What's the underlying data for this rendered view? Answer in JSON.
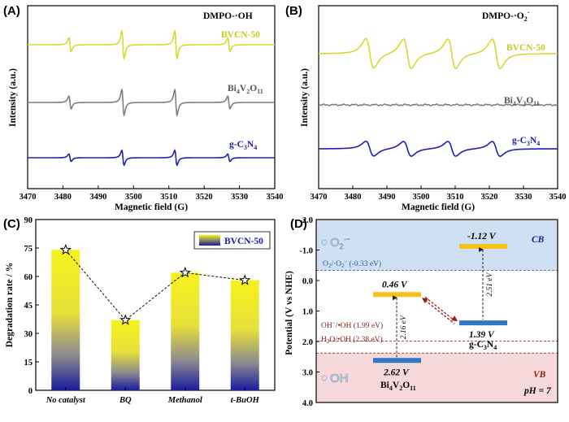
{
  "chart_data": [
    {
      "panel": "(A)",
      "type": "line",
      "title": "DMPO-·OH",
      "xlabel": "Magnetic field (G)",
      "ylabel": "Intensity (a.u.)",
      "xlim": [
        3470,
        3540
      ],
      "x_ticks": [
        3470,
        3480,
        3490,
        3500,
        3510,
        3520,
        3530,
        3540
      ],
      "series": [
        {
          "name": "BVCN-50",
          "color": "#D8D832",
          "peaks_G": [
            3482,
            3497,
            3512,
            3527
          ],
          "relative_amplitude": [
            1,
            2,
            2,
            1
          ]
        },
        {
          "name": "Bi4V2O11",
          "color": "#7F7F7F",
          "peaks_G": [
            3482,
            3497,
            3512,
            3527
          ],
          "relative_amplitude": [
            1,
            2,
            2,
            1
          ]
        },
        {
          "name": "g-C3N4",
          "color": "#2020B0",
          "peaks_G": [
            3482,
            3497,
            3512,
            3527
          ],
          "relative_amplitude": [
            1,
            2,
            2,
            1
          ]
        }
      ]
    },
    {
      "panel": "(B)",
      "type": "line",
      "title": "DMPO-·O2−",
      "xlabel": "Magnetic field (G)",
      "ylabel": "Intensity (a.u.)",
      "xlim": [
        3470,
        3540
      ],
      "x_ticks": [
        3470,
        3480,
        3490,
        3500,
        3510,
        3520,
        3530,
        3540
      ],
      "series": [
        {
          "name": "BVCN-50",
          "color": "#D8D832",
          "peaks_G": [
            3485,
            3496,
            3509,
            3522
          ]
        },
        {
          "name": "Bi4V2O11",
          "color": "#7F7F7F",
          "peaks_G": []
        },
        {
          "name": "g-C3N4",
          "color": "#2020B0",
          "peaks_G": [
            3485,
            3496,
            3509,
            3522
          ]
        }
      ]
    },
    {
      "panel": "(C)",
      "type": "bar",
      "categories": [
        "No catalyst",
        "BQ",
        "Methanol",
        "t-BuOH"
      ],
      "values": [
        74,
        37,
        62,
        58
      ],
      "ylabel": "Degradation rate / %",
      "ylim": [
        0,
        90
      ],
      "y_ticks": [
        0,
        15,
        30,
        45,
        60,
        75,
        90
      ],
      "legend": "BVCN-50",
      "legend_position": "top-right",
      "bar_gradient": [
        "#F5F01E",
        "#1E20A0"
      ]
    },
    {
      "panel": "(D)",
      "type": "diagram",
      "ylabel": "Potential (V vs NHE)",
      "ylim": [
        -2.0,
        4.0
      ],
      "y_ticks": [
        "-2.0",
        "-1.0",
        "0.0",
        "1.0",
        "2.0",
        "3.0",
        "4.0"
      ],
      "levels": [
        {
          "material": "Bi4V2O11",
          "CB": 0.46,
          "VB": 2.62,
          "gap_label": "2.16 eV",
          "CB_label": "0.46 V",
          "VB_label": "2.62 V"
        },
        {
          "material": "g-C3N4",
          "CB": -1.12,
          "VB": 1.39,
          "gap_label": "2.51 eV",
          "CB_label": "-1.12 V",
          "VB_label": "1.39 V"
        }
      ],
      "redox_lines": [
        {
          "label": "O2/·O2− (-0.33 eV)",
          "value": -0.33
        },
        {
          "label": "OH−/•OH (1.99 eV)",
          "value": 1.99
        },
        {
          "label": "H2O/•OH (2.38 eV)",
          "value": 2.38
        }
      ],
      "region_labels": {
        "cb": "CB",
        "vb": "VB",
        "ph": "pH = 7"
      }
    }
  ],
  "text": {
    "a_label": "(A)",
    "b_label": "(B)",
    "c_label": "(C)",
    "d_label": "(D)",
    "a_title": "DMPO-·OH",
    "b_title": "DMPO-·O",
    "bvcn": "BVCN-50",
    "bi": "Bi",
    "bi_4": "4",
    "v": "V",
    "v_2": "2",
    "o": "O",
    "o_11": "11",
    "gc": "g-C",
    "gc_3": "3",
    "n": "N",
    "n_4": "4",
    "intensity": "Intensity (a.u.)",
    "mag": "Magnetic field (G)",
    "deg": "Degradation rate / %",
    "potential": "Potential (V vs NHE)",
    "d_cb": "CB",
    "d_vb": "VB",
    "d_ph": "pH = 7",
    "d_o2": "O",
    "d_oh": "OH",
    "d_o2line": "O",
    "d_o2line_rest": "/·O",
    "d_o2line_val": "(-0.33 eV)",
    "d_ohline": "OH",
    "d_ohline_rest": "/•OH (1.99 eV)",
    "d_h2o": "H",
    "d_h2o_rest": "O/•OH (2.38 eV)",
    "d_bi_cb": "0.46 V",
    "d_bi_vb": "2.62 V",
    "d_bi_gap": "2.16 eV",
    "d_gc_cb": "-1.12 V",
    "d_gc_vb": "1.39 V",
    "d_gc_gap": "2.51 eV"
  }
}
